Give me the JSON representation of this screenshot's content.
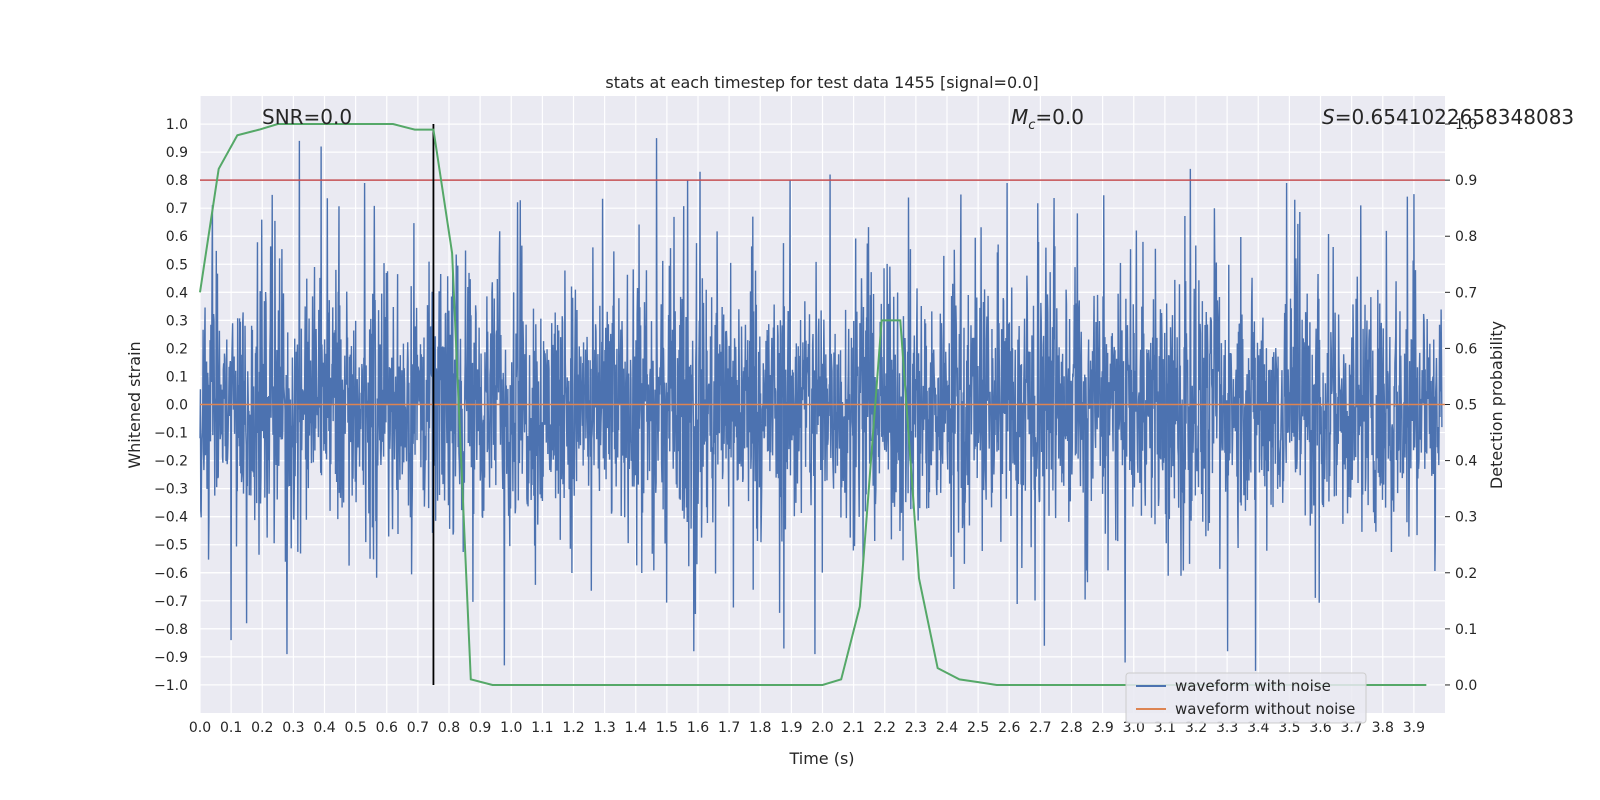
{
  "chart_data": {
    "type": "line",
    "title": "stats at each timestep for test data 1455 [signal=0.0]",
    "xlabel": "Time (s)",
    "ylabel": "Whitened strain",
    "y2label": "Detection probability",
    "xlim": [
      0.0,
      4.0
    ],
    "ylim": [
      -1.1,
      1.1
    ],
    "y2lim": [
      -0.05,
      1.05
    ],
    "xticks": [
      "0.0",
      "0.1",
      "0.2",
      "0.3",
      "0.4",
      "0.5",
      "0.6",
      "0.7",
      "0.8",
      "0.9",
      "1.0",
      "1.1",
      "1.2",
      "1.3",
      "1.4",
      "1.5",
      "1.6",
      "1.7",
      "1.8",
      "1.9",
      "2.0",
      "2.1",
      "2.2",
      "2.3",
      "2.4",
      "2.5",
      "2.6",
      "2.7",
      "2.8",
      "2.9",
      "3.0",
      "3.1",
      "3.2",
      "3.3",
      "3.4",
      "3.5",
      "3.6",
      "3.7",
      "3.8",
      "3.9"
    ],
    "yticks": [
      "1.0",
      "0.9",
      "0.8",
      "0.7",
      "0.6",
      "0.5",
      "0.4",
      "0.3",
      "0.2",
      "0.1",
      "0.0",
      "−0.1",
      "−0.2",
      "−0.3",
      "−0.4",
      "−0.5",
      "−0.6",
      "−0.7",
      "−0.8",
      "−0.9",
      "−1.0"
    ],
    "y2ticks": [
      "1.0",
      "0.9",
      "0.8",
      "0.7",
      "0.6",
      "0.5",
      "0.4",
      "0.3",
      "0.2",
      "0.1",
      "0.0"
    ],
    "grid": true,
    "legend_position": "bottom-right",
    "annotations": {
      "snr": "SNR=0.0",
      "mc_symbol": "M",
      "mc_sub": "c",
      "mc_value": "=0.0",
      "s_symbol": "S",
      "s_value": "=0.6541022658348083"
    },
    "series": [
      {
        "name": "waveform with noise",
        "color": "#4c72b0",
        "axis": "left",
        "envelope_description_values": {
          "noise_peak_pos": [
            [
              0.28,
              1.0
            ],
            [
              0.32,
              0.94
            ],
            [
              0.39,
              0.92
            ],
            [
              0.53,
              0.79
            ],
            [
              1.47,
              0.95
            ],
            [
              1.57,
              0.8
            ],
            [
              1.61,
              0.83
            ],
            [
              1.9,
              0.8
            ],
            [
              2.03,
              0.82
            ],
            [
              2.6,
              0.79
            ],
            [
              3.19,
              0.84
            ],
            [
              3.5,
              0.79
            ],
            [
              3.91,
              0.75
            ]
          ],
          "noise_peak_neg": [
            [
              0.1,
              -0.84
            ],
            [
              0.15,
              -0.78
            ],
            [
              0.28,
              -0.89
            ],
            [
              0.98,
              -0.93
            ],
            [
              1.59,
              -0.88
            ],
            [
              1.88,
              -0.87
            ],
            [
              1.98,
              -0.89
            ],
            [
              2.72,
              -0.86
            ],
            [
              2.98,
              -0.92
            ],
            [
              3.31,
              -0.88
            ],
            [
              3.4,
              -0.95
            ]
          ]
        }
      },
      {
        "name": "waveform without noise",
        "color": "#dd8452",
        "axis": "left",
        "x": [
          0.0,
          4.0
        ],
        "y": [
          0.0,
          0.0
        ]
      },
      {
        "name": "",
        "color": "#55a868",
        "axis": "right",
        "x": [
          0.0,
          0.06,
          0.12,
          0.19,
          0.25,
          0.31,
          0.37,
          0.44,
          0.5,
          0.56,
          0.62,
          0.69,
          0.75,
          0.81,
          0.87,
          0.94,
          1.0,
          1.2,
          1.4,
          1.6,
          1.8,
          2.0,
          2.06,
          2.12,
          2.19,
          2.25,
          2.31,
          2.37,
          2.44,
          2.5,
          2.56,
          2.62,
          2.8,
          3.0,
          3.5,
          3.94
        ],
        "y": [
          0.7,
          0.92,
          0.98,
          0.99,
          1.0,
          1.0,
          1.0,
          1.0,
          1.0,
          1.0,
          1.0,
          0.99,
          0.99,
          0.77,
          0.01,
          0.0,
          0.0,
          0.0,
          0.0,
          0.0,
          0.0,
          0.0,
          0.01,
          0.14,
          0.65,
          0.65,
          0.19,
          0.03,
          0.01,
          0.005,
          0.0,
          0.0,
          0.0,
          0.0,
          0.0,
          0.0
        ]
      }
    ],
    "hlines": [
      {
        "y2": 0.9,
        "color": "#c44e52"
      }
    ],
    "vlines": [
      {
        "x": 0.75,
        "y_from": -1.0,
        "y_to": 1.0,
        "color": "#000000"
      }
    ]
  }
}
